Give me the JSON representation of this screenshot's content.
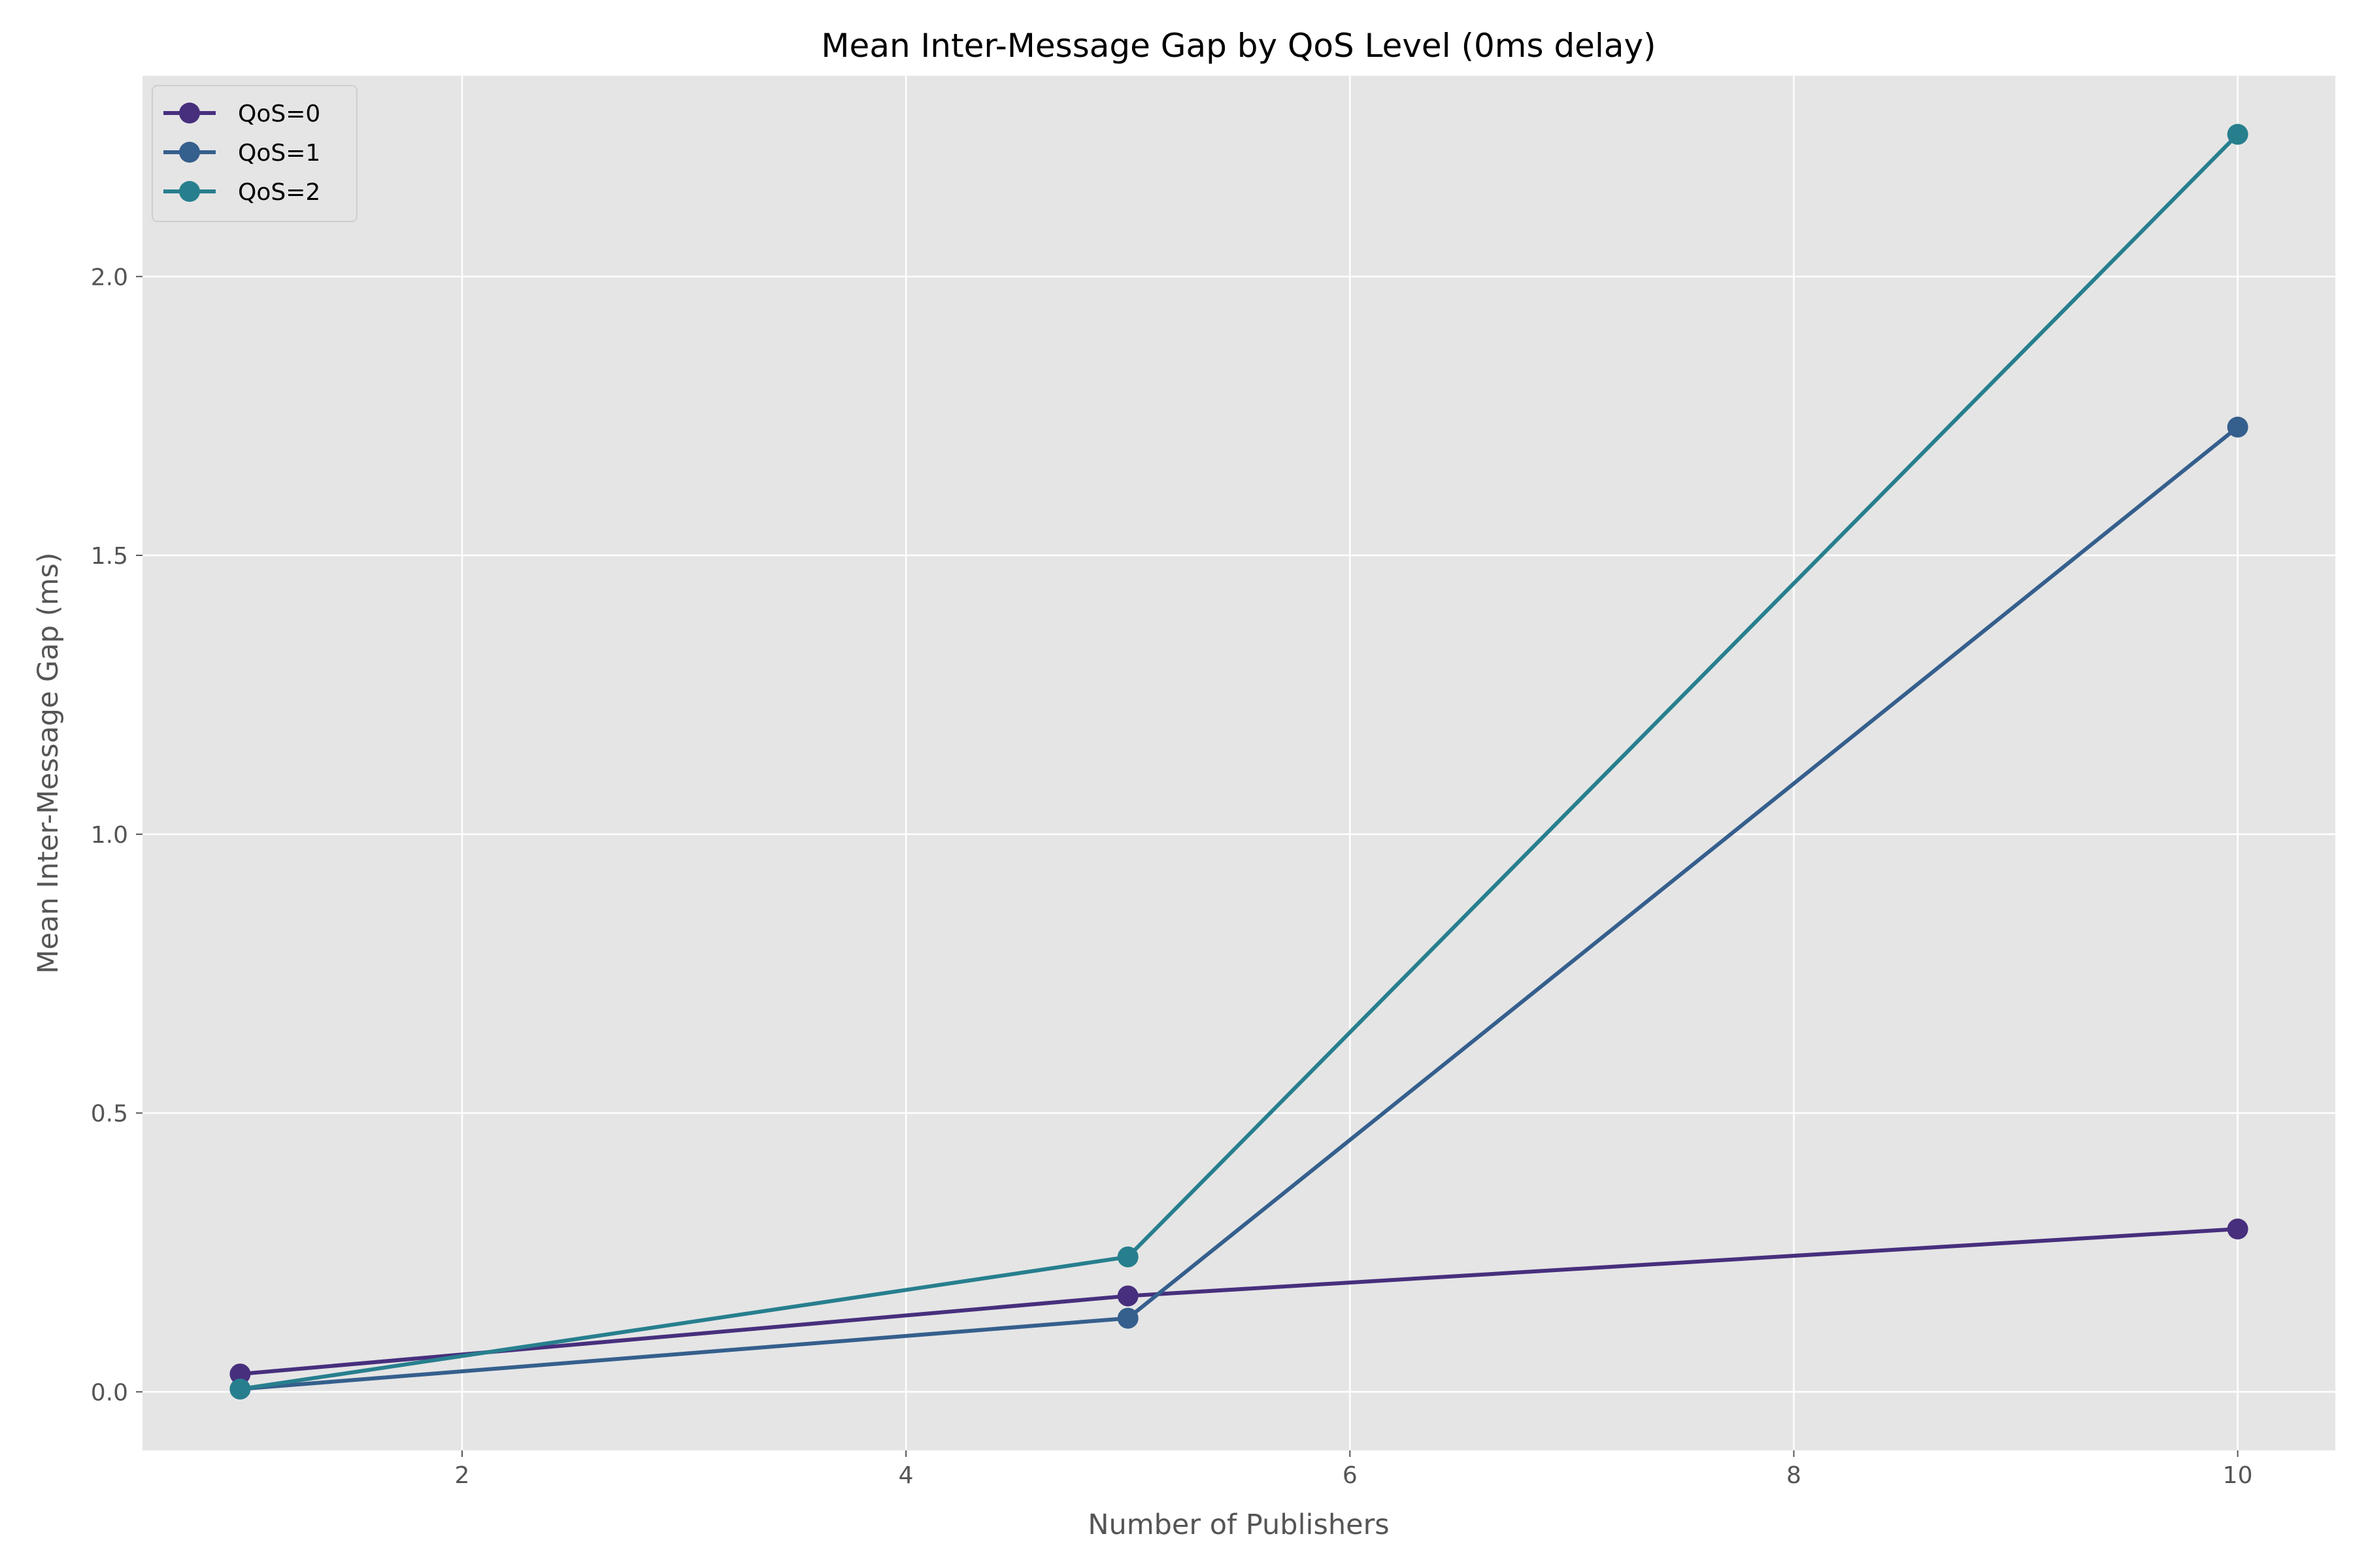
{
  "chart_data": {
    "type": "line",
    "title": "Mean Inter-Message Gap by QoS Level (0ms delay)",
    "xlabel": "Number of Publishers",
    "ylabel": "Mean Inter-Message Gap (ms)",
    "xlim": [
      0.56,
      10.44
    ],
    "ylim": [
      -0.105,
      2.36
    ],
    "xticks": [
      2,
      4,
      6,
      8,
      10
    ],
    "yticks": [
      0.0,
      0.5,
      1.0,
      1.5,
      2.0
    ],
    "xtick_labels": [
      "2",
      "4",
      "6",
      "8",
      "10"
    ],
    "ytick_labels": [
      "0.0",
      "0.5",
      "1.0",
      "1.5",
      "2.0"
    ],
    "grid": true,
    "legend_position": "top-left",
    "x": [
      1,
      5,
      10
    ],
    "series": [
      {
        "name": "QoS=0",
        "color": "#472f7d",
        "values": [
          0.032,
          0.172,
          0.292
        ]
      },
      {
        "name": "QoS=1",
        "color": "#355f8d",
        "values": [
          0.005,
          0.132,
          1.73
        ]
      },
      {
        "name": "QoS=2",
        "color": "#277f8e",
        "values": [
          0.005,
          0.242,
          2.255
        ]
      }
    ]
  }
}
